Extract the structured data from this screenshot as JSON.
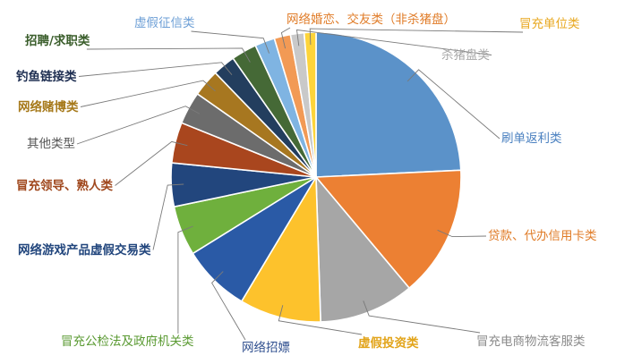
{
  "chart_data": {
    "type": "pie",
    "title": "",
    "legend": "none",
    "slices": [
      {
        "label": "刷单返利类",
        "value": 24.0,
        "color": "#5b92c9",
        "label_color": "#4a80c0"
      },
      {
        "label": "贷款、代办信用卡类",
        "value": 14.5,
        "color": "#ec8033",
        "label_color": "#e07c28"
      },
      {
        "label": "冒充电商物流客服类",
        "value": 10.5,
        "color": "#a6a6a6",
        "label_color": "#8a8a8a"
      },
      {
        "label": "虚假投资类",
        "value": 9.0,
        "color": "#fdc22c",
        "label_color": "#e2a41a"
      },
      {
        "label": "网络招嫖",
        "value": 7.5,
        "color": "#2a5aa6",
        "label_color": "#2f4f8f"
      },
      {
        "label": "冒充公检法及政府机关类",
        "value": 5.5,
        "color": "#6fb03d",
        "label_color": "#5a9a32"
      },
      {
        "label": "网络游戏产品虚假交易类",
        "value": 4.8,
        "color": "#22467d",
        "label_color": "#22467d"
      },
      {
        "label": "冒充领导、熟人类",
        "value": 4.5,
        "color": "#a9461e",
        "label_color": "#a0481e"
      },
      {
        "label": "其他类型",
        "value": 3.6,
        "color": "#6c6c6c",
        "label_color": "#555555"
      },
      {
        "label": "网络赌博类",
        "value": 3.0,
        "color": "#a77720",
        "label_color": "#a6791a"
      },
      {
        "label": "钓鱼链接类",
        "value": 2.5,
        "color": "#233e5e",
        "label_color": "#1f2f52"
      },
      {
        "label": "招聘/求职类",
        "value": 2.8,
        "color": "#456936",
        "label_color": "#3b5e2c"
      },
      {
        "label": "虚假征信类",
        "value": 2.2,
        "color": "#7fb4e2",
        "label_color": "#6d9fd6"
      },
      {
        "label": "网络婚恋、交友类（非杀猪盘）",
        "value": 1.8,
        "color": "#f29a55",
        "label_color": "#e07c28"
      },
      {
        "label": "杀猪盘类",
        "value": 1.5,
        "color": "#c9c9c9",
        "label_color": "#a8a8a8"
      },
      {
        "label": "冒充单位类",
        "value": 1.3,
        "color": "#fdd43a",
        "label_color": "#e8a820"
      }
    ]
  }
}
